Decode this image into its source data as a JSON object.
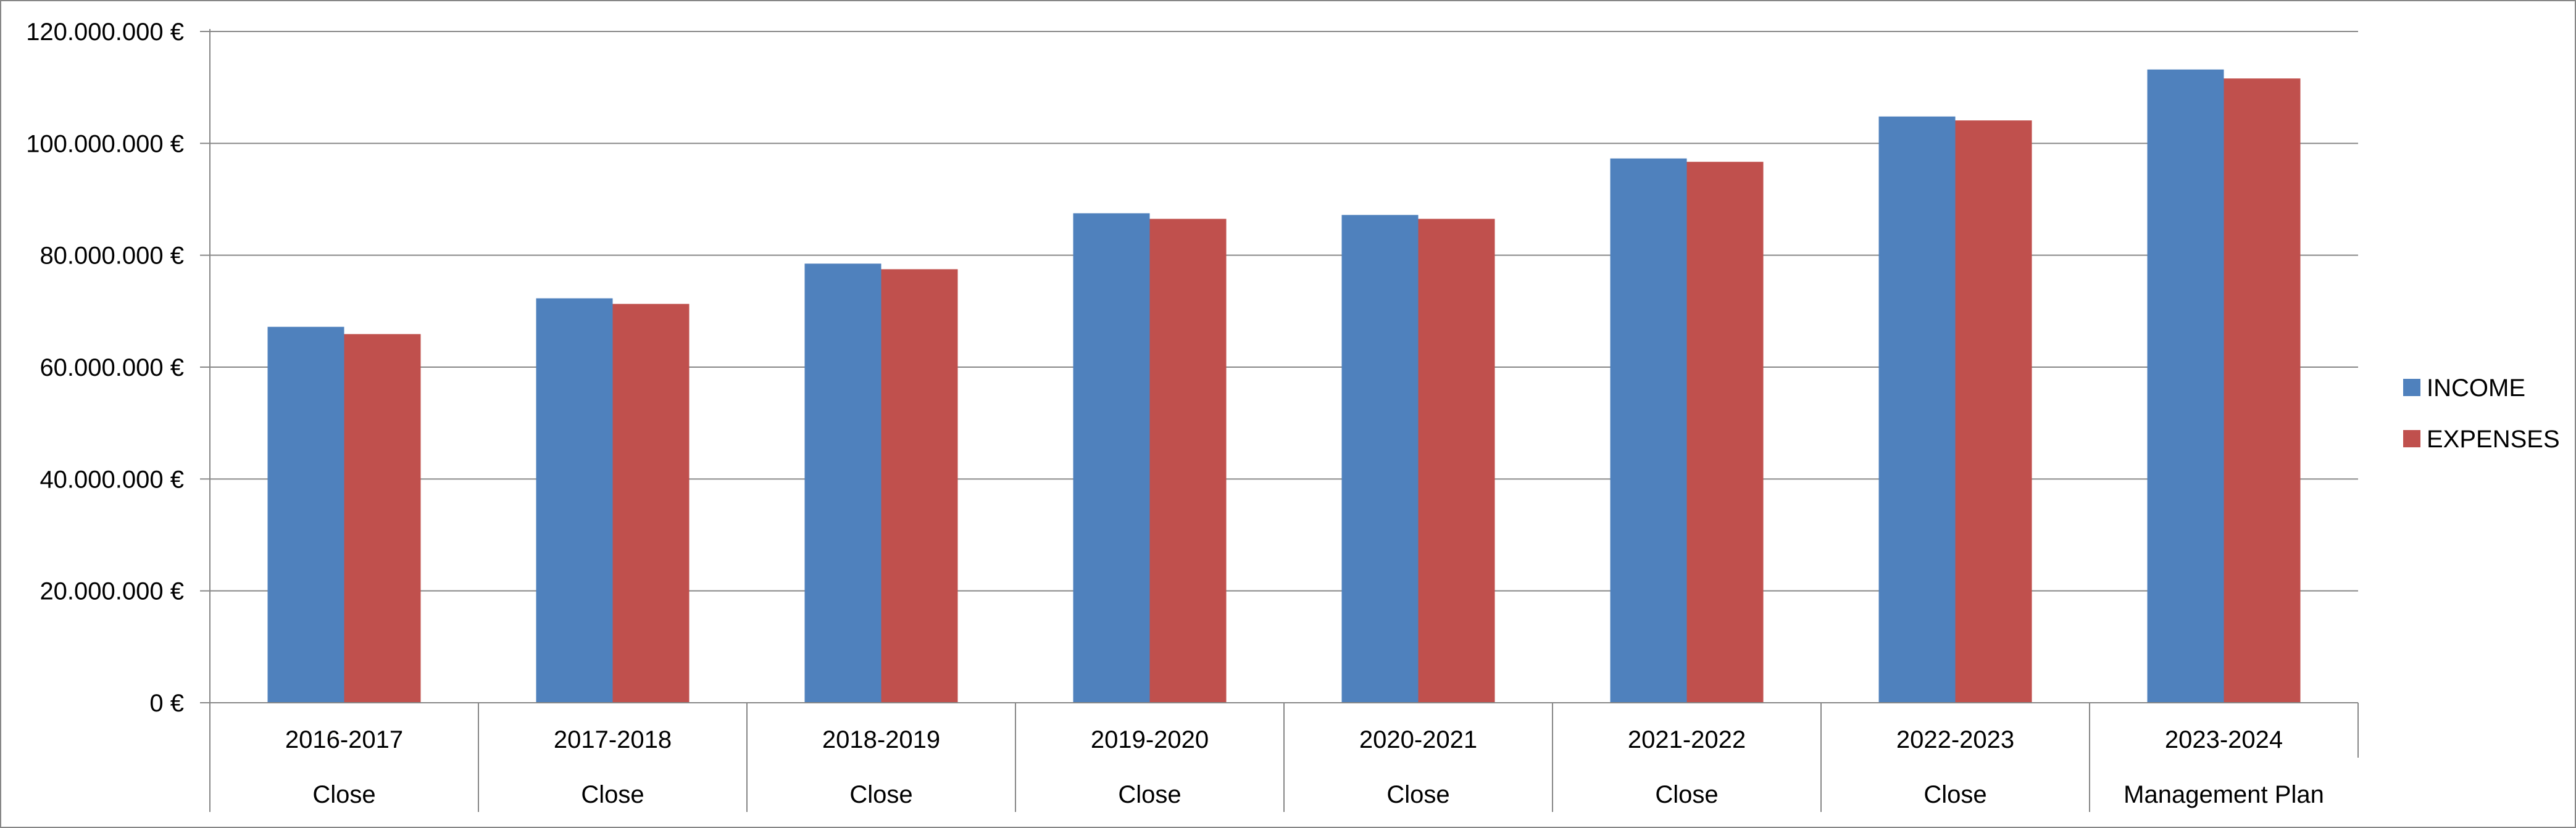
{
  "chart_data": {
    "type": "bar",
    "categories": [
      "2016-2017",
      "2017-2018",
      "2018-2019",
      "2019-2020",
      "2020-2021",
      "2021-2022",
      "2022-2023",
      "2023-2024"
    ],
    "category_sublabels": [
      "Close",
      "Close",
      "Close",
      "Close",
      "Close",
      "Close",
      "Close",
      "Management Plan"
    ],
    "series": [
      {
        "name": "INCOME",
        "color": "#4F81BD",
        "values": [
          67200000,
          72300000,
          78500000,
          87500000,
          87200000,
          97300000,
          104800000,
          113200000
        ]
      },
      {
        "name": "EXPENSES",
        "color": "#C0504D",
        "values": [
          65900000,
          71300000,
          77500000,
          86500000,
          86500000,
          96700000,
          104100000,
          111600000
        ]
      }
    ],
    "ylim": [
      0,
      120000000
    ],
    "yticks": [
      0,
      20000000,
      40000000,
      60000000,
      80000000,
      100000000,
      120000000
    ],
    "ytick_labels": [
      "0 €",
      "20.000.000 €",
      "40.000.000 €",
      "60.000.000 €",
      "80.000.000 €",
      "100.000.000 €",
      "120.000.000 €"
    ],
    "title": "",
    "xlabel": "",
    "ylabel": "",
    "grid": "horizontal",
    "legend_position": "right"
  }
}
